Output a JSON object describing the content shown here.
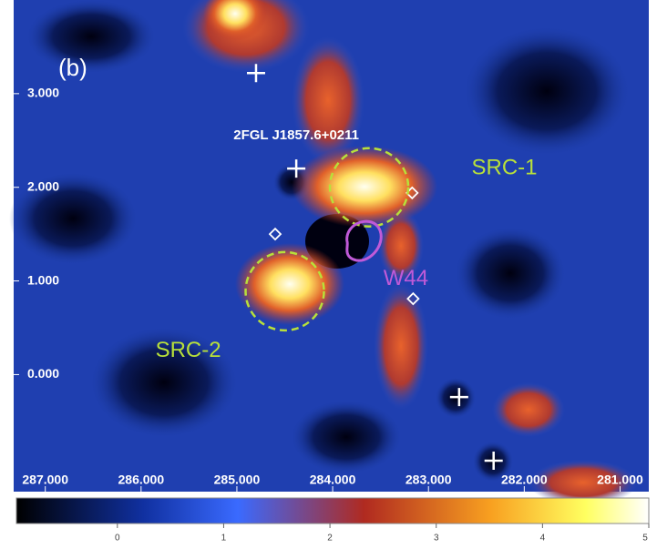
{
  "chart_data": {
    "type": "heatmap",
    "panel_label": "(b)",
    "xlim": [
      287.33,
      280.7
    ],
    "ylim": [
      -1.25,
      4.0
    ],
    "xticks": [
      {
        "value": 287,
        "label": "287.000"
      },
      {
        "value": 286,
        "label": "286.000"
      },
      {
        "value": 285,
        "label": "285.000"
      },
      {
        "value": 284,
        "label": "284.000"
      },
      {
        "value": 283,
        "label": "283.000"
      },
      {
        "value": 282,
        "label": "282.000"
      },
      {
        "value": 281,
        "label": "281.000"
      }
    ],
    "yticks": [
      {
        "value": 3,
        "label": "3.000"
      },
      {
        "value": 2,
        "label": "2.000"
      },
      {
        "value": 1,
        "label": "1.000"
      },
      {
        "value": 0,
        "label": "0.000"
      }
    ],
    "clim": [
      -0.95,
      5
    ],
    "cticks": [
      0,
      1,
      2,
      3,
      4,
      5
    ],
    "crosses": {
      "x": [
        284.8,
        284.38,
        282.68,
        282.32
      ],
      "y": [
        3.22,
        2.2,
        -0.24,
        -0.92
      ]
    },
    "diamonds": {
      "x": [
        284.6,
        283.17,
        283.16
      ],
      "y": [
        1.5,
        1.94,
        0.81
      ]
    },
    "annotations": [
      {
        "text": "2FGL J1857.6+0211",
        "x": 284.38,
        "y": 2.55,
        "color": "#ffffff"
      },
      {
        "text": "SRC-1",
        "x": 282.55,
        "y": 2.2,
        "color": "#b8e03a",
        "circle": {
          "x": 283.62,
          "y": 2.0
        }
      },
      {
        "text": "SRC-2",
        "x": 285.85,
        "y": 0.25,
        "color": "#b8e03a",
        "circle": {
          "x": 284.5,
          "y": 0.89
        }
      },
      {
        "text": "W44",
        "x": 283.47,
        "y": 1.02,
        "color": "#c05ad8"
      }
    ]
  }
}
